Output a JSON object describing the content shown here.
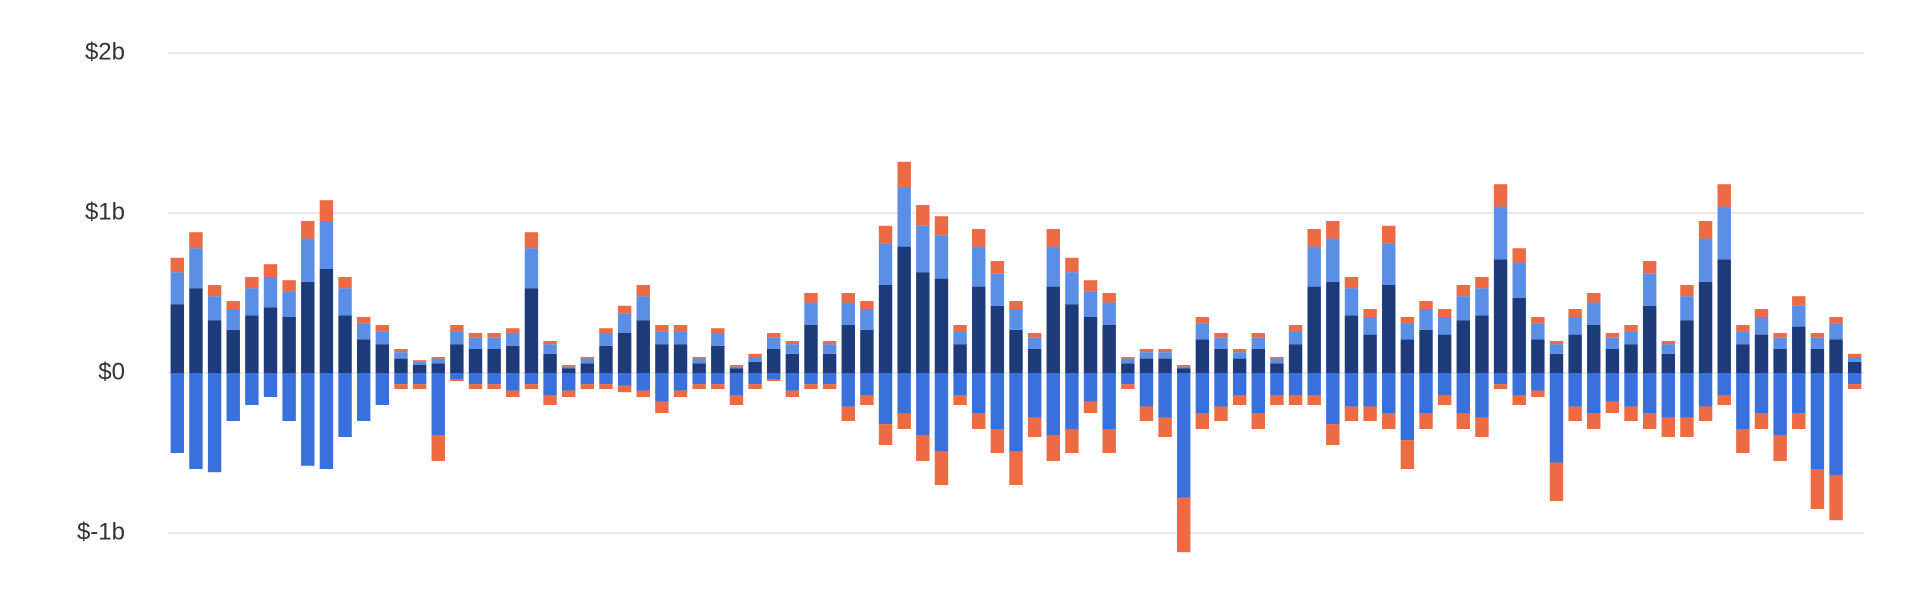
{
  "chart_data": {
    "type": "bar",
    "stacked": true,
    "grid": true,
    "categories": [
      null,
      null,
      null,
      null,
      null,
      null,
      null,
      null,
      null,
      null,
      null,
      null,
      null,
      null,
      null,
      null,
      null,
      null,
      null,
      null,
      null,
      null,
      null,
      null,
      null,
      null,
      null,
      null,
      null,
      null,
      null,
      null,
      null,
      null,
      null,
      null,
      null,
      null,
      null,
      null,
      null,
      null,
      null,
      null,
      null,
      null,
      null,
      null,
      null,
      null,
      null,
      null,
      null,
      null,
      null,
      null,
      null,
      null,
      null,
      null,
      null,
      null,
      null,
      null,
      null,
      null,
      null,
      null,
      null,
      null,
      null,
      null,
      null,
      null,
      null,
      null,
      null,
      null,
      null,
      null,
      null,
      null,
      null,
      null,
      null,
      null,
      null,
      null,
      null,
      null,
      null
    ],
    "ylim": [
      -1.2,
      2.1
    ],
    "yticks": [
      {
        "value": -1,
        "label": "$-1b"
      },
      {
        "value": 0,
        "label": "$0"
      },
      {
        "value": 1,
        "label": "$1b"
      },
      {
        "value": 2,
        "label": "$2b"
      }
    ],
    "series": [
      {
        "color": "#1d3b78",
        "values": [
          0.43,
          0.53,
          0.33,
          0.27,
          0.36,
          0.41,
          0.35,
          0.57,
          0.65,
          0.36,
          0.21,
          0.18,
          0.09,
          0.05,
          0.06,
          0.18,
          0.15,
          0.15,
          0.17,
          0.53,
          0.12,
          0.03,
          0.06,
          0.17,
          0.25,
          0.33,
          0.18,
          0.18,
          0.06,
          0.17,
          0.03,
          0.07,
          0.15,
          0.12,
          0.3,
          0.12,
          0.3,
          0.27,
          0.55,
          0.79,
          0.63,
          0.59,
          0.18,
          0.54,
          0.42,
          0.27,
          0.15,
          0.54,
          0.43,
          0.35,
          0.3,
          0.06,
          0.09,
          0.09,
          0.03,
          0.21,
          0.15,
          0.09,
          0.15,
          0.06,
          0.18,
          0.54,
          0.57,
          0.36,
          0.24,
          0.55,
          0.21,
          0.27,
          0.24,
          0.33,
          0.36,
          0.71,
          0.47,
          0.21,
          0.12,
          0.24,
          0.3,
          0.15,
          0.18,
          0.42,
          0.12,
          0.33,
          0.57,
          0.71,
          0.18,
          0.24,
          0.15,
          0.29,
          0.15,
          0.21,
          0.07
        ]
      },
      {
        "color": "#5b8fe6",
        "values": [
          0.2,
          0.25,
          0.15,
          0.13,
          0.17,
          0.19,
          0.16,
          0.27,
          0.3,
          0.17,
          0.1,
          0.08,
          0.04,
          0.02,
          0.03,
          0.08,
          0.07,
          0.07,
          0.08,
          0.25,
          0.06,
          0.01,
          0.03,
          0.08,
          0.12,
          0.15,
          0.08,
          0.08,
          0.03,
          0.08,
          0.01,
          0.03,
          0.07,
          0.06,
          0.14,
          0.06,
          0.14,
          0.13,
          0.26,
          0.37,
          0.29,
          0.27,
          0.08,
          0.25,
          0.2,
          0.13,
          0.07,
          0.25,
          0.2,
          0.16,
          0.14,
          0.03,
          0.04,
          0.04,
          0.01,
          0.1,
          0.07,
          0.04,
          0.07,
          0.03,
          0.08,
          0.25,
          0.27,
          0.17,
          0.11,
          0.26,
          0.1,
          0.13,
          0.11,
          0.15,
          0.17,
          0.33,
          0.22,
          0.1,
          0.06,
          0.11,
          0.14,
          0.07,
          0.08,
          0.2,
          0.06,
          0.15,
          0.27,
          0.33,
          0.08,
          0.11,
          0.07,
          0.13,
          0.07,
          0.1,
          0.03
        ]
      },
      {
        "color": "#ec6a44",
        "values": [
          0.09,
          0.1,
          0.07,
          0.05,
          0.07,
          0.08,
          0.07,
          0.11,
          0.13,
          0.07,
          0.04,
          0.04,
          0.02,
          0.01,
          0.01,
          0.04,
          0.03,
          0.03,
          0.03,
          0.1,
          0.02,
          0.01,
          0.01,
          0.03,
          0.05,
          0.07,
          0.04,
          0.04,
          0.01,
          0.03,
          0.01,
          0.02,
          0.03,
          0.02,
          0.06,
          0.02,
          0.06,
          0.05,
          0.11,
          0.16,
          0.13,
          0.12,
          0.04,
          0.11,
          0.08,
          0.05,
          0.03,
          0.11,
          0.09,
          0.07,
          0.06,
          0.01,
          0.02,
          0.02,
          0.01,
          0.04,
          0.03,
          0.02,
          0.03,
          0.01,
          0.04,
          0.11,
          0.11,
          0.07,
          0.05,
          0.11,
          0.04,
          0.05,
          0.05,
          0.07,
          0.07,
          0.14,
          0.09,
          0.04,
          0.02,
          0.05,
          0.06,
          0.03,
          0.04,
          0.08,
          0.02,
          0.07,
          0.11,
          0.14,
          0.04,
          0.05,
          0.03,
          0.06,
          0.03,
          0.04,
          0.02
        ]
      },
      {
        "color": "#3a70dc",
        "values": [
          -0.5,
          -0.6,
          -0.62,
          -0.3,
          -0.2,
          -0.15,
          -0.3,
          -0.58,
          -0.6,
          -0.4,
          -0.3,
          -0.2,
          -0.07,
          -0.07,
          -0.39,
          -0.04,
          -0.07,
          -0.07,
          -0.11,
          -0.07,
          -0.14,
          -0.11,
          -0.07,
          -0.07,
          -0.08,
          -0.11,
          -0.18,
          -0.11,
          -0.07,
          -0.07,
          -0.14,
          -0.07,
          -0.04,
          -0.11,
          -0.07,
          -0.07,
          -0.21,
          -0.14,
          -0.32,
          -0.25,
          -0.39,
          -0.49,
          -0.14,
          -0.25,
          -0.35,
          -0.49,
          -0.28,
          -0.39,
          -0.35,
          -0.18,
          -0.35,
          -0.07,
          -0.21,
          -0.28,
          -0.78,
          -0.25,
          -0.21,
          -0.14,
          -0.25,
          -0.14,
          -0.14,
          -0.14,
          -0.32,
          -0.21,
          -0.21,
          -0.25,
          -0.42,
          -0.25,
          -0.14,
          -0.25,
          -0.28,
          -0.07,
          -0.14,
          -0.11,
          -0.56,
          -0.21,
          -0.25,
          -0.18,
          -0.21,
          -0.25,
          -0.28,
          -0.28,
          -0.21,
          -0.14,
          -0.35,
          -0.25,
          -0.39,
          -0.25,
          -0.6,
          -0.64,
          -0.07
        ]
      },
      {
        "color": "#ec6a44",
        "values": [
          0,
          0,
          0,
          0,
          0,
          0,
          0,
          0,
          0,
          0,
          0,
          0,
          -0.03,
          -0.03,
          -0.16,
          -0.01,
          -0.03,
          -0.03,
          -0.04,
          -0.03,
          -0.06,
          -0.04,
          -0.03,
          -0.03,
          -0.04,
          -0.04,
          -0.07,
          -0.04,
          -0.03,
          -0.03,
          -0.06,
          -0.03,
          -0.01,
          -0.04,
          -0.03,
          -0.03,
          -0.09,
          -0.06,
          -0.13,
          -0.1,
          -0.16,
          -0.21,
          -0.06,
          -0.1,
          -0.15,
          -0.21,
          -0.12,
          -0.16,
          -0.15,
          -0.07,
          -0.15,
          -0.03,
          -0.09,
          -0.12,
          -0.34,
          -0.1,
          -0.09,
          -0.06,
          -0.1,
          -0.06,
          -0.06,
          -0.06,
          -0.13,
          -0.09,
          -0.09,
          -0.1,
          -0.18,
          -0.1,
          -0.06,
          -0.1,
          -0.12,
          -0.03,
          -0.06,
          -0.04,
          -0.24,
          -0.09,
          -0.1,
          -0.07,
          -0.09,
          -0.1,
          -0.12,
          -0.12,
          -0.09,
          -0.06,
          -0.15,
          -0.1,
          -0.16,
          -0.1,
          -0.25,
          -0.28,
          -0.03
        ]
      }
    ]
  }
}
